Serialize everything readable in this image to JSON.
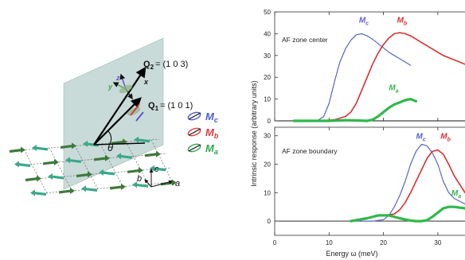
{
  "schematic": {
    "q2_label": "Q",
    "q2_sub": "2",
    "q2_value": "= (1 0 3)",
    "q1_label": "Q",
    "q1_sub": "1",
    "q1_value": "= (1 0 1)",
    "theta": "θ",
    "x_label": "x",
    "y_label": "y",
    "z_label": "z",
    "axis_a": "a",
    "axis_b": "b",
    "axis_c": "c",
    "legend": [
      {
        "main": "M",
        "sub": "c",
        "color": "#4a5bd4"
      },
      {
        "main": "M",
        "sub": "b",
        "color": "#e03a3a"
      },
      {
        "main": "M",
        "sub": "a",
        "color": "#2aa84a"
      }
    ]
  },
  "chart_data": {
    "type": "line",
    "ylabel": "Intrinsic response (arbitrary units)",
    "xlabel": "Energy ω (meV)",
    "xlim": [
      0,
      35
    ],
    "xticks": [
      0,
      10,
      20,
      30
    ],
    "colors": {
      "Mc": "#5a62c8",
      "Mb": "#d83030",
      "Ma": "#2fb84a"
    },
    "panels": [
      {
        "annotation": "AF zone center",
        "ylim": [
          0,
          50
        ],
        "yticks": [
          0,
          10,
          20,
          30,
          40,
          50
        ],
        "series": [
          {
            "name": "M",
            "sub": "c",
            "color": "#5a62c8",
            "width": 1.2,
            "x": [
              3.5,
              6,
              8,
              9,
              10,
              11,
              12,
              13,
              14,
              15,
              16,
              17,
              18,
              19,
              20,
              21,
              22,
              23,
              24,
              25
            ],
            "y": [
              0,
              0,
              0.3,
              2,
              8,
              18,
              27,
              33,
              37,
              39.5,
              40,
              39,
              37.5,
              35.5,
              33.5,
              31.5,
              30,
              28.5,
              27,
              25.5
            ]
          },
          {
            "name": "M",
            "sub": "b",
            "color": "#d83030",
            "width": 1.6,
            "x": [
              3.5,
              8,
              11,
              13,
              14,
              15,
              16,
              17,
              18,
              19,
              20,
              21,
              22,
              23,
              24,
              25,
              27,
              29,
              31,
              33,
              35
            ],
            "y": [
              0,
              0,
              0.5,
              2,
              4,
              8,
              14,
              20,
              26,
              31,
              35,
              38,
              40,
              40.5,
              40,
              39,
              36,
              33,
              30,
              28,
              26
            ]
          },
          {
            "name": "M",
            "sub": "a",
            "color": "#2fb84a",
            "width": 3.2,
            "x": [
              3.5,
              10,
              13,
              15,
              17,
              18,
              19,
              20,
              21,
              22,
              23,
              24,
              25,
              26
            ],
            "y": [
              0,
              0,
              0.3,
              0.2,
              0,
              0.5,
              2,
              4,
              6,
              7.5,
              8.5,
              9.5,
              10,
              9
            ]
          }
        ],
        "labels": [
          {
            "text": "M",
            "sub": "c",
            "x": 15.5,
            "y": 45,
            "color": "#5a62c8"
          },
          {
            "text": "M",
            "sub": "b",
            "x": 22.5,
            "y": 45,
            "color": "#d83030"
          },
          {
            "text": "M",
            "sub": "a",
            "x": 21,
            "y": 14,
            "color": "#2fb84a"
          }
        ]
      },
      {
        "annotation": "AF zone boundary",
        "ylim": [
          -5,
          33
        ],
        "yticks": [
          0,
          10,
          20,
          30
        ],
        "series": [
          {
            "name": "M",
            "sub": "c",
            "color": "#5a62c8",
            "width": 1.2,
            "x": [
              14,
              18,
              20,
              21,
              22,
              23,
              24,
              25,
              26,
              27,
              28,
              29,
              30,
              31,
              32,
              33,
              35
            ],
            "y": [
              0,
              0,
              0.5,
              2,
              5,
              9,
              14,
              20,
              24.5,
              27,
              26.5,
              24,
              20,
              14,
              10,
              8,
              6
            ]
          },
          {
            "name": "M",
            "sub": "b",
            "color": "#d83030",
            "width": 1.6,
            "x": [
              14,
              16,
              18,
              20,
              22,
              23,
              24,
              25,
              26,
              27,
              28,
              29,
              30,
              31,
              32,
              33,
              35
            ],
            "y": [
              0,
              0.5,
              1.5,
              2,
              2.5,
              4,
              6.5,
              10,
              14,
              18,
              22,
              24.5,
              25,
              23.5,
              20,
              16,
              10
            ]
          },
          {
            "name": "M",
            "sub": "a",
            "color": "#2fb84a",
            "width": 3.2,
            "x": [
              14,
              17,
              19,
              21,
              23,
              25,
              26,
              27,
              28,
              29,
              30,
              31,
              32,
              33,
              35
            ],
            "y": [
              0,
              1,
              2,
              2,
              1,
              0.2,
              0,
              0,
              0.3,
              1.5,
              3,
              4.5,
              5,
              5,
              4.5
            ]
          }
        ],
        "labels": [
          {
            "text": "M",
            "sub": "c",
            "x": 26,
            "y": 29,
            "color": "#5a62c8"
          },
          {
            "text": "M",
            "sub": "b",
            "x": 30.5,
            "y": 29,
            "color": "#d83030"
          },
          {
            "text": "M",
            "sub": "a",
            "x": 32.5,
            "y": 9,
            "color": "#2fb84a"
          }
        ]
      }
    ]
  }
}
